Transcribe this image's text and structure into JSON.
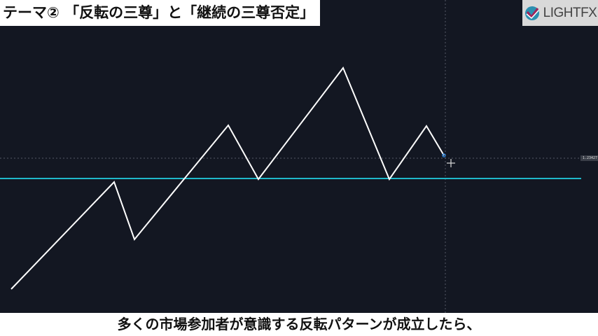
{
  "title": "テーマ② 「反転の三尊」と「継続の三尊否定」",
  "logo": {
    "text": "LIGHTFX"
  },
  "price_label": "1.23427",
  "subtitle": "多くの市場参加者が意識する反転パターンが成立したら、",
  "colors": {
    "background": "#131722",
    "support_line": "#1fb8c9",
    "price_line": "#ffffff"
  }
}
